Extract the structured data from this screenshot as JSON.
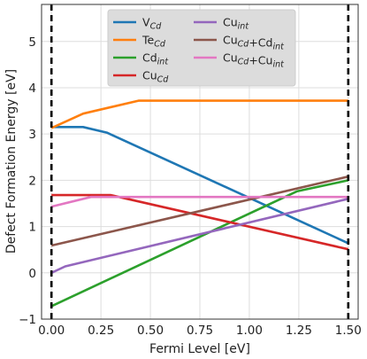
{
  "chart_data": {
    "type": "line",
    "title": "",
    "xlabel": "Fermi Level [eV]",
    "ylabel": "Defect Formation Energy [eV]",
    "xlim": [
      -0.05,
      1.55
    ],
    "ylim": [
      -1.0,
      5.8
    ],
    "xticks": [
      0.0,
      0.25,
      0.5,
      0.75,
      1.0,
      1.25,
      1.5
    ],
    "xtick_labels": [
      "0.00",
      "0.25",
      "0.50",
      "0.75",
      "1.00",
      "1.25",
      "1.50"
    ],
    "yticks": [
      -1,
      0,
      1,
      2,
      3,
      4,
      5
    ],
    "ytick_labels": [
      "−1",
      "0",
      "1",
      "2",
      "3",
      "4",
      "5"
    ],
    "grid": true,
    "vlines": [
      0.0,
      1.5
    ],
    "legend_position": "top-center",
    "legend_columns": 2,
    "series": [
      {
        "name_main": "V",
        "name_sub": "Cd",
        "name_rest": "",
        "color": "#1f77b4",
        "points": [
          [
            0.0,
            3.15
          ],
          [
            0.16,
            3.15
          ],
          [
            0.28,
            3.03
          ],
          [
            1.5,
            0.64
          ]
        ]
      },
      {
        "name_main": "Te",
        "name_sub": "Cd",
        "name_rest": "",
        "color": "#ff7f0e",
        "points": [
          [
            0.0,
            3.13
          ],
          [
            0.16,
            3.44
          ],
          [
            0.44,
            3.72
          ],
          [
            1.5,
            3.72
          ]
        ]
      },
      {
        "name_main": "Cd",
        "name_sub": "int",
        "name_rest": "",
        "color": "#2ca02c",
        "points": [
          [
            0.0,
            -0.72
          ],
          [
            1.24,
            1.76
          ],
          [
            1.5,
            2.0
          ]
        ]
      },
      {
        "name_main": "Cu",
        "name_sub": "Cd",
        "name_rest": "",
        "color": "#d62728",
        "points": [
          [
            0.0,
            1.68
          ],
          [
            0.3,
            1.68
          ],
          [
            1.5,
            0.51
          ]
        ]
      },
      {
        "name_main": "Cu",
        "name_sub": "int",
        "name_rest": "",
        "color": "#9467bd",
        "points": [
          [
            0.0,
            0.0
          ],
          [
            0.07,
            0.14
          ],
          [
            1.5,
            1.6
          ]
        ]
      },
      {
        "name_main": "Cu",
        "name_sub": "Cd",
        "name_rest": "+Cd",
        "name_sub2": "int",
        "color": "#8c564b",
        "points": [
          [
            0.0,
            0.59
          ],
          [
            1.5,
            2.08
          ]
        ]
      },
      {
        "name_main": "Cu",
        "name_sub": "Cd",
        "name_rest": "+Cu",
        "name_sub2": "int",
        "color": "#e377c2",
        "points": [
          [
            0.0,
            1.43
          ],
          [
            0.2,
            1.64
          ],
          [
            1.5,
            1.64
          ]
        ]
      }
    ]
  }
}
